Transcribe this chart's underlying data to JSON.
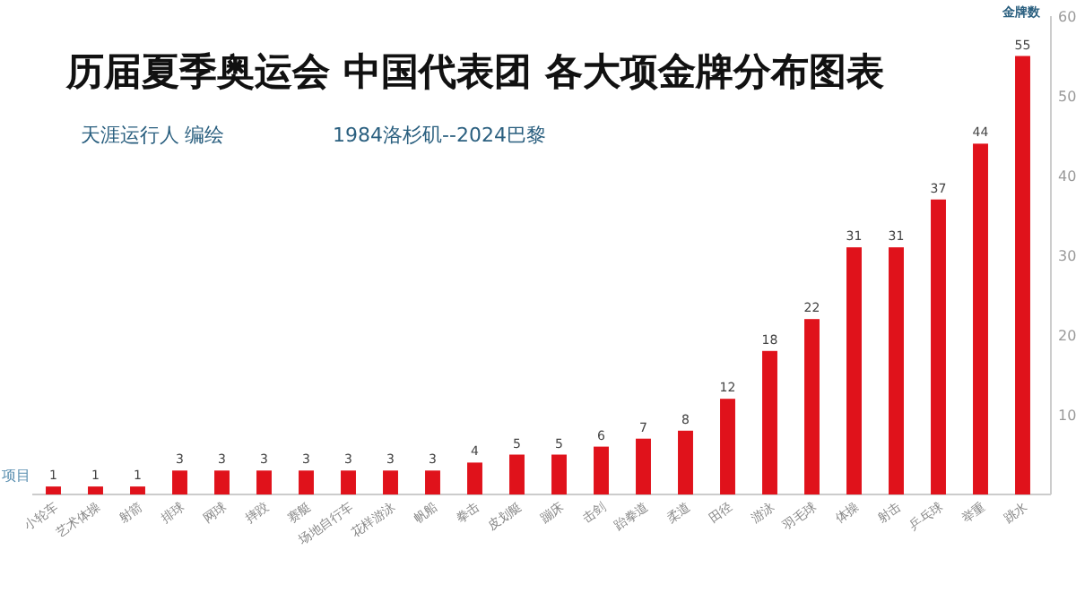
{
  "chart_data": {
    "type": "bar",
    "title": "历届夏季奥运会 中国代表团 各大项金牌分布图表",
    "subtitle": "1984洛杉矶--2024巴黎",
    "annotations": [
      "天涯运行人 编绘"
    ],
    "xlabel": "项目",
    "ylabel": "金牌数",
    "categories": [
      "小轮车",
      "艺术体操",
      "射箭",
      "排球",
      "网球",
      "摔跤",
      "赛艇",
      "场地自行车",
      "花样游泳",
      "帆船",
      "拳击",
      "皮划艇",
      "蹦床",
      "击剑",
      "跆拳道",
      "柔道",
      "田径",
      "游泳",
      "羽毛球",
      "体操",
      "射击",
      "乒乓球",
      "举重",
      "跳水"
    ],
    "values": [
      1,
      1,
      1,
      3,
      3,
      3,
      3,
      3,
      3,
      3,
      4,
      5,
      5,
      6,
      7,
      8,
      12,
      18,
      22,
      31,
      31,
      37,
      44,
      55
    ],
    "color": "#e0121b",
    "data_labels": true,
    "ylim": [
      0,
      60
    ],
    "yticks": [
      10,
      20,
      30,
      40,
      50,
      60
    ]
  }
}
